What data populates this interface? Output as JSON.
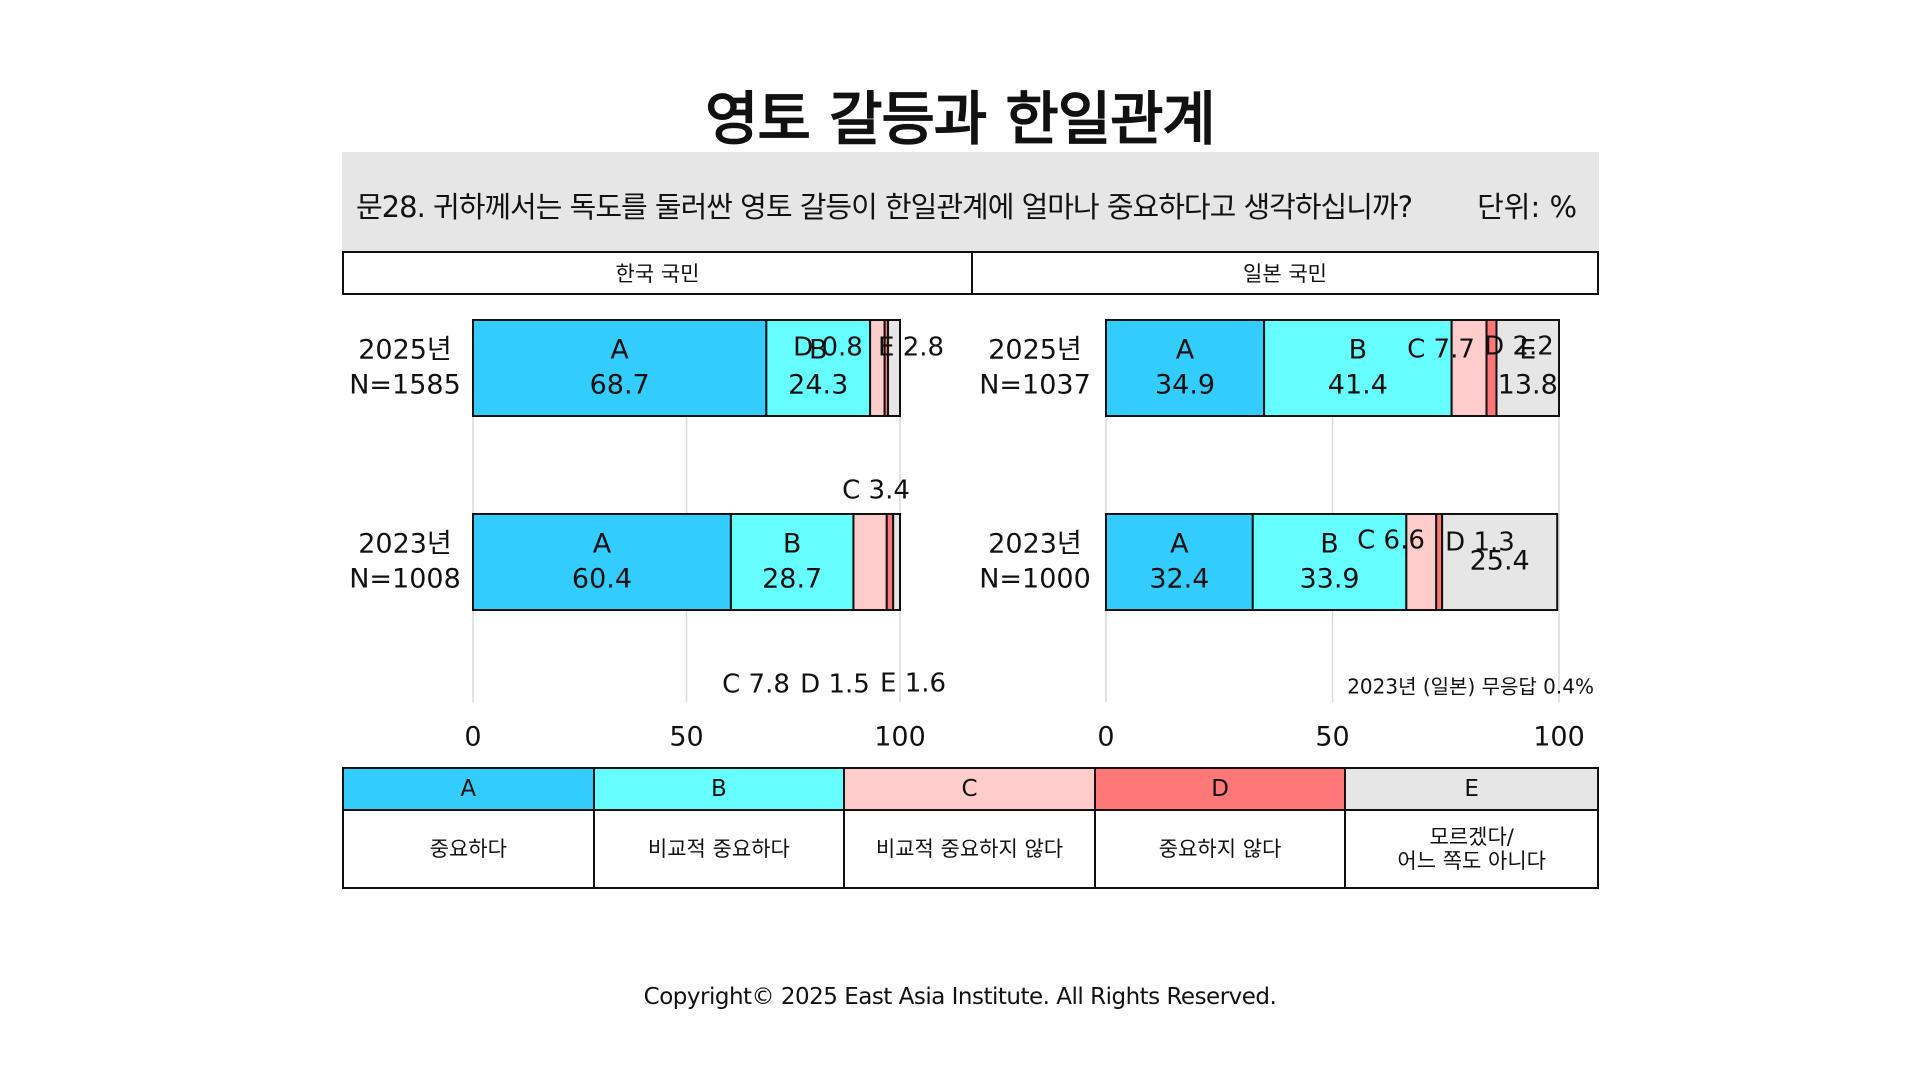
{
  "title": "영토 갈등과 한일관계",
  "question": "문28. 귀하께서는 독도를 둘러싼 영토 갈등이 한일관계에 얼마나 중요하다고 생각하십니까?",
  "unit": "단위: %",
  "groups": [
    "한국 국민",
    "일본 국민"
  ],
  "legend": [
    {
      "key": "A",
      "label": "중요하다",
      "color": "#33ccff"
    },
    {
      "key": "B",
      "label": "비교적 중요하다",
      "color": "#66ffff"
    },
    {
      "key": "C",
      "label": "비교적 중요하지 않다",
      "color": "#ffcccc"
    },
    {
      "key": "D",
      "label": "중요하지 않다",
      "color": "#ff7777"
    },
    {
      "key": "E",
      "label": "모르겠다/\n어느 쪽도 아니다",
      "color": "#e6e6e6"
    }
  ],
  "copyright": "Copyright© 2025 East Asia Institute. All Rights Reserved.",
  "chart_data": [
    {
      "type": "bar",
      "stacked": true,
      "orientation": "horizontal",
      "group": "한국 국민",
      "categories": [
        "2025년\nN=1585",
        "2023년\nN=1008"
      ],
      "series": [
        {
          "name": "A",
          "values": [
            68.7,
            60.4
          ]
        },
        {
          "name": "B",
          "values": [
            24.3,
            28.7
          ]
        },
        {
          "name": "C",
          "values": [
            3.4,
            7.8
          ]
        },
        {
          "name": "D",
          "values": [
            0.8,
            1.5
          ]
        },
        {
          "name": "E",
          "values": [
            2.8,
            1.6
          ]
        }
      ],
      "xlim": [
        0,
        100
      ],
      "xticks": [
        0,
        50,
        100
      ],
      "grid": true
    },
    {
      "type": "bar",
      "stacked": true,
      "orientation": "horizontal",
      "group": "일본 국민",
      "categories": [
        "2025년\nN=1037",
        "2023년\nN=1000"
      ],
      "series": [
        {
          "name": "A",
          "values": [
            34.9,
            32.4
          ]
        },
        {
          "name": "B",
          "values": [
            41.4,
            33.9
          ]
        },
        {
          "name": "C",
          "values": [
            7.7,
            6.6
          ]
        },
        {
          "name": "D",
          "values": [
            2.2,
            1.3
          ]
        },
        {
          "name": "E",
          "values": [
            13.8,
            25.4
          ]
        }
      ],
      "xlim": [
        0,
        100
      ],
      "xticks": [
        0,
        50,
        100
      ],
      "grid": true,
      "note": "2023년 (일본) 무응답 0.4%"
    }
  ]
}
